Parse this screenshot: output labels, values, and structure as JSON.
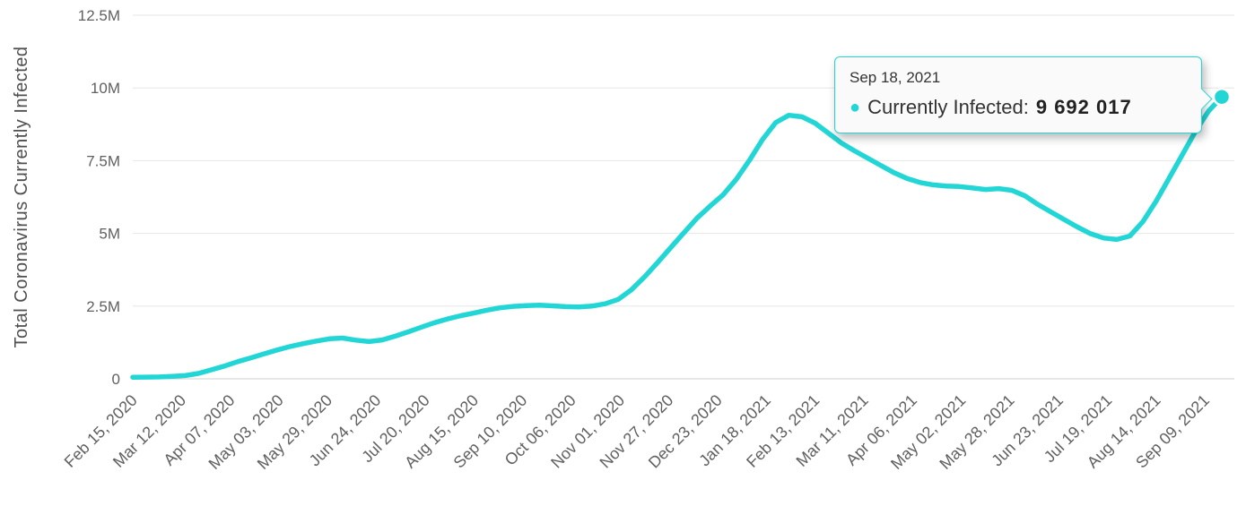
{
  "accent_color": "#23d6d6",
  "tooltip": {
    "date": "Sep 18, 2021",
    "bullet_icon": "●",
    "series_label": "Currently Infected:",
    "value": "9 692 017"
  },
  "chart_data": {
    "type": "line",
    "title": "",
    "xlabel": "",
    "ylabel": "Total Coronavirus Currently Infected",
    "ylim": [
      0,
      12500000
    ],
    "grid": true,
    "legend": "none",
    "line_color": "#23d6d6",
    "y_ticks": [
      {
        "value": 0,
        "label": "0"
      },
      {
        "value": 2500000,
        "label": "2.5M"
      },
      {
        "value": 5000000,
        "label": "5M"
      },
      {
        "value": 7500000,
        "label": "7.5M"
      },
      {
        "value": 10000000,
        "label": "10M"
      },
      {
        "value": 12500000,
        "label": "12.5M"
      }
    ],
    "x_tick_labels": [
      "Feb 15, 2020",
      "Mar 12, 2020",
      "Apr 07, 2020",
      "May 03, 2020",
      "May 29, 2020",
      "Jun 24, 2020",
      "Jul 20, 2020",
      "Aug 15, 2020",
      "Sep 10, 2020",
      "Oct 06, 2020",
      "Nov 01, 2020",
      "Nov 27, 2020",
      "Dec 23, 2020",
      "Jan 18, 2021",
      "Feb 13, 2021",
      "Mar 11, 2021",
      "Apr 06, 2021",
      "May 02, 2021",
      "May 28, 2021",
      "Jun 23, 2021",
      "Jul 19, 2021",
      "Aug 14, 2021",
      "Sep 09, 2021"
    ],
    "series": [
      {
        "name": "Currently Infected",
        "points": [
          {
            "date": "Feb 15, 2020",
            "value": 55000
          },
          {
            "date": "Feb 22, 2020",
            "value": 58000
          },
          {
            "date": "Feb 29, 2020",
            "value": 65000
          },
          {
            "date": "Mar 7, 2020",
            "value": 82000
          },
          {
            "date": "Mar 14, 2020",
            "value": 112000
          },
          {
            "date": "Mar 21, 2020",
            "value": 185000
          },
          {
            "date": "Mar 28, 2020",
            "value": 310000
          },
          {
            "date": "Apr 4, 2020",
            "value": 440000
          },
          {
            "date": "Apr 11, 2020",
            "value": 590000
          },
          {
            "date": "Apr 18, 2020",
            "value": 720000
          },
          {
            "date": "Apr 25, 2020",
            "value": 860000
          },
          {
            "date": "May 2, 2020",
            "value": 990000
          },
          {
            "date": "May 9, 2020",
            "value": 1110000
          },
          {
            "date": "May 16, 2020",
            "value": 1210000
          },
          {
            "date": "May 23, 2020",
            "value": 1300000
          },
          {
            "date": "May 30, 2020",
            "value": 1375000
          },
          {
            "date": "Jun 6, 2020",
            "value": 1400000
          },
          {
            "date": "Jun 13, 2020",
            "value": 1330000
          },
          {
            "date": "Jun 20, 2020",
            "value": 1280000
          },
          {
            "date": "Jun 27, 2020",
            "value": 1335000
          },
          {
            "date": "Jul 4, 2020",
            "value": 1465000
          },
          {
            "date": "Jul 11, 2020",
            "value": 1615000
          },
          {
            "date": "Jul 18, 2020",
            "value": 1775000
          },
          {
            "date": "Jul 25, 2020",
            "value": 1930000
          },
          {
            "date": "Aug 1, 2020",
            "value": 2060000
          },
          {
            "date": "Aug 8, 2020",
            "value": 2170000
          },
          {
            "date": "Aug 15, 2020",
            "value": 2260000
          },
          {
            "date": "Aug 22, 2020",
            "value": 2360000
          },
          {
            "date": "Aug 29, 2020",
            "value": 2440000
          },
          {
            "date": "Sep 5, 2020",
            "value": 2490000
          },
          {
            "date": "Sep 12, 2020",
            "value": 2520000
          },
          {
            "date": "Sep 19, 2020",
            "value": 2530000
          },
          {
            "date": "Sep 26, 2020",
            "value": 2510000
          },
          {
            "date": "Oct 3, 2020",
            "value": 2480000
          },
          {
            "date": "Oct 10, 2020",
            "value": 2470000
          },
          {
            "date": "Oct 17, 2020",
            "value": 2500000
          },
          {
            "date": "Oct 24, 2020",
            "value": 2580000
          },
          {
            "date": "Oct 31, 2020",
            "value": 2730000
          },
          {
            "date": "Nov 7, 2020",
            "value": 3060000
          },
          {
            "date": "Nov 14, 2020",
            "value": 3500000
          },
          {
            "date": "Nov 21, 2020",
            "value": 4000000
          },
          {
            "date": "Nov 28, 2020",
            "value": 4510000
          },
          {
            "date": "Dec 5, 2020",
            "value": 5020000
          },
          {
            "date": "Dec 12, 2020",
            "value": 5520000
          },
          {
            "date": "Dec 19, 2020",
            "value": 5940000
          },
          {
            "date": "Dec 26, 2020",
            "value": 6330000
          },
          {
            "date": "Jan 2, 2021",
            "value": 6860000
          },
          {
            "date": "Jan 9, 2021",
            "value": 7510000
          },
          {
            "date": "Jan 16, 2021",
            "value": 8230000
          },
          {
            "date": "Jan 23, 2021",
            "value": 8810000
          },
          {
            "date": "Jan 30, 2021",
            "value": 9060000
          },
          {
            "date": "Feb 6, 2021",
            "value": 9010000
          },
          {
            "date": "Feb 13, 2021",
            "value": 8790000
          },
          {
            "date": "Feb 20, 2021",
            "value": 8450000
          },
          {
            "date": "Feb 27, 2021",
            "value": 8110000
          },
          {
            "date": "Mar 6, 2021",
            "value": 7840000
          },
          {
            "date": "Mar 13, 2021",
            "value": 7590000
          },
          {
            "date": "Mar 20, 2021",
            "value": 7340000
          },
          {
            "date": "Mar 27, 2021",
            "value": 7090000
          },
          {
            "date": "Apr 3, 2021",
            "value": 6890000
          },
          {
            "date": "Apr 10, 2021",
            "value": 6750000
          },
          {
            "date": "Apr 17, 2021",
            "value": 6670000
          },
          {
            "date": "Apr 24, 2021",
            "value": 6630000
          },
          {
            "date": "May 1, 2021",
            "value": 6610000
          },
          {
            "date": "May 8, 2021",
            "value": 6560000
          },
          {
            "date": "May 15, 2021",
            "value": 6510000
          },
          {
            "date": "May 22, 2021",
            "value": 6540000
          },
          {
            "date": "May 29, 2021",
            "value": 6480000
          },
          {
            "date": "Jun 5, 2021",
            "value": 6290000
          },
          {
            "date": "Jun 12, 2021",
            "value": 5990000
          },
          {
            "date": "Jun 19, 2021",
            "value": 5730000
          },
          {
            "date": "Jun 26, 2021",
            "value": 5470000
          },
          {
            "date": "Jul 3, 2021",
            "value": 5220000
          },
          {
            "date": "Jul 10, 2021",
            "value": 4990000
          },
          {
            "date": "Jul 17, 2021",
            "value": 4840000
          },
          {
            "date": "Jul 24, 2021",
            "value": 4790000
          },
          {
            "date": "Jul 31, 2021",
            "value": 4910000
          },
          {
            "date": "Aug 7, 2021",
            "value": 5410000
          },
          {
            "date": "Aug 14, 2021",
            "value": 6110000
          },
          {
            "date": "Aug 21, 2021",
            "value": 6910000
          },
          {
            "date": "Aug 28, 2021",
            "value": 7710000
          },
          {
            "date": "Sep 4, 2021",
            "value": 8510000
          },
          {
            "date": "Sep 11, 2021",
            "value": 9210000
          },
          {
            "date": "Sep 18, 2021",
            "value": 9692017
          }
        ]
      }
    ]
  }
}
